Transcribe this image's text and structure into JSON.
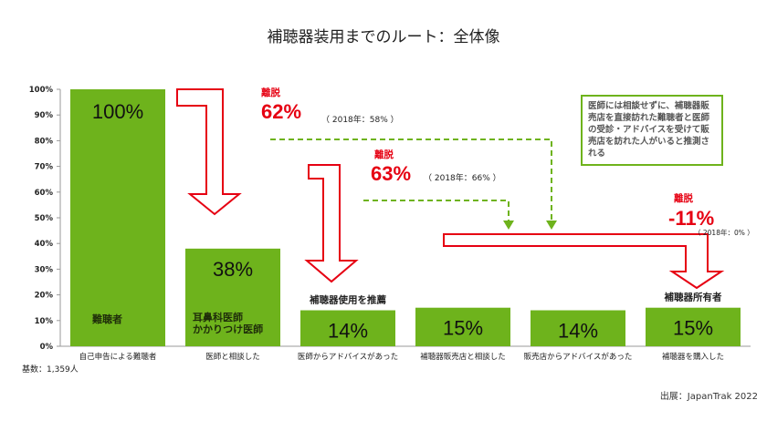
{
  "title": "補聴器装用までのルート：全体像",
  "chart_data": {
    "type": "bar",
    "categories": [
      "自己申告による難聴者",
      "医師と相談した",
      "医師からアドバイスがあった",
      "補聴器販売店と相談した",
      "販売店からアドバイスがあった",
      "補聴器を購入した"
    ],
    "values": [
      100,
      38,
      14,
      15,
      14,
      15
    ],
    "value_labels": [
      "100%",
      "38%",
      "14%",
      "15%",
      "14%",
      "15%"
    ],
    "in_bar_labels": [
      "難聴者",
      "耳鼻科医師\nかかりつけ医師",
      "",
      "",
      "",
      ""
    ],
    "above_bar_labels": [
      "",
      "",
      "補聴器使用を推薦",
      "",
      "",
      "補聴器所有者"
    ],
    "yticks": [
      "0%",
      "10%",
      "20%",
      "30%",
      "40%",
      "50%",
      "60%",
      "70%",
      "80%",
      "90%",
      "100%"
    ],
    "ylim": [
      0,
      100
    ],
    "bar_color": "#6eb31c",
    "drop_color": "#e60012",
    "dashed_color": "#6eb31c",
    "dropouts": [
      {
        "label": "離脱",
        "value": "62%",
        "prev": "（ 2018年：58% ）"
      },
      {
        "label": "離脱",
        "value": "63%",
        "prev": "（ 2018年：66% ）"
      },
      {
        "label": "離脱",
        "value": "-11%",
        "prev": "（ 2018年：0% ）"
      }
    ]
  },
  "note": "医師には相談せずに、補聴器販売店を直接訪れた難聴者と医師の受診・アドバイスを受けて販売店を訪れた人がいると推測される",
  "base": "基数：1,359人",
  "source": "出展：JapanTrak 2022"
}
